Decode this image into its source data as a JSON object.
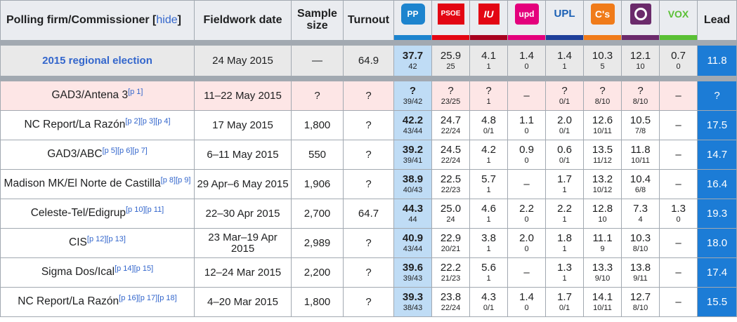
{
  "header": {
    "firm_label": "Polling firm/Commissioner",
    "hide_link_open": "[",
    "hide_link": "hide",
    "hide_link_close": "]",
    "fieldwork_label": "Fieldwork date",
    "sample_label_1": "Sample",
    "sample_label_2": "size",
    "turnout_label": "Turnout",
    "lead_label": "Lead",
    "parties": [
      {
        "name": "pp-logo",
        "text": "PP",
        "bg": "#1d84ce",
        "fg": "#ffffff",
        "bar": "#1d84ce"
      },
      {
        "name": "psoe-logo",
        "text": "PSOE",
        "bg": "#e30613",
        "fg": "#ffffff",
        "bar": "#e30613"
      },
      {
        "name": "iu-logo",
        "text": "IU",
        "bg": "#e30613",
        "fg": "#ffffff",
        "bar": "#a8001f"
      },
      {
        "name": "upd-logo",
        "text": "upd",
        "bg": "#e4007c",
        "fg": "#ffffff",
        "bar": "#e4007c"
      },
      {
        "name": "upl-logo",
        "text": "UPL",
        "bg": "#eaecf0",
        "fg": "#1a5fb4",
        "bar": "#1f3f9a"
      },
      {
        "name": "cs-logo",
        "text": "C's",
        "bg": "#f07b1a",
        "fg": "#ffffff",
        "bar": "#f07b1a"
      },
      {
        "name": "podemos-logo",
        "text": "",
        "bg": "#6b2a6b",
        "fg": "#ffffff",
        "bar": "#6b2a6b"
      },
      {
        "name": "vox-logo",
        "text": "VOX",
        "bg": "#eaecf0",
        "fg": "#5ac035",
        "bar": "#5ac035"
      }
    ]
  },
  "election": {
    "label": "2015 regional election",
    "date": "24 May 2015",
    "sample": "—",
    "turnout": "64.9",
    "parties": [
      {
        "v": "37.7",
        "s": "42"
      },
      {
        "v": "25.9",
        "s": "25"
      },
      {
        "v": "4.1",
        "s": "1"
      },
      {
        "v": "1.4",
        "s": "0"
      },
      {
        "v": "1.4",
        "s": "1"
      },
      {
        "v": "10.3",
        "s": "5"
      },
      {
        "v": "12.1",
        "s": "10"
      },
      {
        "v": "0.7",
        "s": "0"
      }
    ],
    "lead": "11.8"
  },
  "polls": [
    {
      "firm": "GAD3/Antena 3",
      "refs": [
        "[p 1]"
      ],
      "date": "11–22 May 2015",
      "sample": "?",
      "turnout": "?",
      "parties": [
        {
          "v": "?",
          "s": "39/42"
        },
        {
          "v": "?",
          "s": "23/25"
        },
        {
          "v": "?",
          "s": "1"
        },
        {
          "v": "–",
          "s": ""
        },
        {
          "v": "?",
          "s": "0/1"
        },
        {
          "v": "?",
          "s": "8/10"
        },
        {
          "v": "?",
          "s": "8/10"
        },
        {
          "v": "–",
          "s": ""
        }
      ],
      "lead": "?",
      "highlight": true
    },
    {
      "firm": "NC Report/La Razón",
      "refs": [
        "[p 2]",
        "[p 3]",
        "[p 4]"
      ],
      "date": "17 May 2015",
      "sample": "1,800",
      "turnout": "?",
      "parties": [
        {
          "v": "42.2",
          "s": "43/44"
        },
        {
          "v": "24.7",
          "s": "22/24"
        },
        {
          "v": "4.8",
          "s": "0/1"
        },
        {
          "v": "1.1",
          "s": "0"
        },
        {
          "v": "2.0",
          "s": "0/1"
        },
        {
          "v": "12.6",
          "s": "10/11"
        },
        {
          "v": "10.5",
          "s": "7/8"
        },
        {
          "v": "–",
          "s": ""
        }
      ],
      "lead": "17.5"
    },
    {
      "firm": "GAD3/ABC",
      "refs": [
        "[p 5]",
        "[p 6]",
        "[p 7]"
      ],
      "date": "6–11 May 2015",
      "sample": "550",
      "turnout": "?",
      "parties": [
        {
          "v": "39.2",
          "s": "39/41"
        },
        {
          "v": "24.5",
          "s": "22/24"
        },
        {
          "v": "4.2",
          "s": "1"
        },
        {
          "v": "0.9",
          "s": "0"
        },
        {
          "v": "0.6",
          "s": "0/1"
        },
        {
          "v": "13.5",
          "s": "11/12"
        },
        {
          "v": "11.8",
          "s": "10/11"
        },
        {
          "v": "–",
          "s": ""
        }
      ],
      "lead": "14.7"
    },
    {
      "firm": "Madison MK/El Norte de Castilla",
      "refs": [
        "[p 8]",
        "[p 9]"
      ],
      "date": "29 Apr–6 May 2015",
      "sample": "1,906",
      "turnout": "?",
      "parties": [
        {
          "v": "38.9",
          "s": "40/43"
        },
        {
          "v": "22.5",
          "s": "22/23"
        },
        {
          "v": "5.7",
          "s": "1"
        },
        {
          "v": "–",
          "s": ""
        },
        {
          "v": "1.7",
          "s": "1"
        },
        {
          "v": "13.2",
          "s": "10/12"
        },
        {
          "v": "10.4",
          "s": "6/8"
        },
        {
          "v": "–",
          "s": ""
        }
      ],
      "lead": "16.4"
    },
    {
      "firm": "Celeste-Tel/Edigrup",
      "refs": [
        "[p 10]",
        "[p 11]"
      ],
      "date": "22–30 Apr 2015",
      "sample": "2,700",
      "turnout": "64.7",
      "parties": [
        {
          "v": "44.3",
          "s": "44"
        },
        {
          "v": "25.0",
          "s": "24"
        },
        {
          "v": "4.6",
          "s": "1"
        },
        {
          "v": "2.2",
          "s": "0"
        },
        {
          "v": "2.2",
          "s": "1"
        },
        {
          "v": "12.8",
          "s": "10"
        },
        {
          "v": "7.3",
          "s": "4"
        },
        {
          "v": "1.3",
          "s": "0"
        }
      ],
      "lead": "19.3"
    },
    {
      "firm": "CIS",
      "refs": [
        "[p 12]",
        "[p 13]"
      ],
      "date": "23 Mar–19 Apr 2015",
      "sample": "2,989",
      "turnout": "?",
      "parties": [
        {
          "v": "40.9",
          "s": "43/44"
        },
        {
          "v": "22.9",
          "s": "20/21"
        },
        {
          "v": "3.8",
          "s": "1"
        },
        {
          "v": "2.0",
          "s": "0"
        },
        {
          "v": "1.8",
          "s": "1"
        },
        {
          "v": "11.1",
          "s": "9"
        },
        {
          "v": "10.3",
          "s": "8/10"
        },
        {
          "v": "–",
          "s": ""
        }
      ],
      "lead": "18.0"
    },
    {
      "firm": "Sigma Dos/Ical",
      "refs": [
        "[p 14]",
        "[p 15]"
      ],
      "date": "12–24 Mar 2015",
      "sample": "2,200",
      "turnout": "?",
      "parties": [
        {
          "v": "39.6",
          "s": "39/43"
        },
        {
          "v": "22.2",
          "s": "21/23"
        },
        {
          "v": "5.6",
          "s": "1"
        },
        {
          "v": "–",
          "s": ""
        },
        {
          "v": "1.3",
          "s": "1"
        },
        {
          "v": "13.3",
          "s": "9/10"
        },
        {
          "v": "13.8",
          "s": "9/11"
        },
        {
          "v": "–",
          "s": ""
        }
      ],
      "lead": "17.4"
    },
    {
      "firm": "NC Report/La Razón",
      "refs": [
        "[p 16]",
        "[p 17]",
        "[p 18]"
      ],
      "date": "4–20 Mar 2015",
      "sample": "1,800",
      "turnout": "?",
      "parties": [
        {
          "v": "39.3",
          "s": "38/43"
        },
        {
          "v": "23.8",
          "s": "22/24"
        },
        {
          "v": "4.3",
          "s": "0/1"
        },
        {
          "v": "1.4",
          "s": "0"
        },
        {
          "v": "1.7",
          "s": "0/1"
        },
        {
          "v": "14.1",
          "s": "10/11"
        },
        {
          "v": "12.7",
          "s": "8/10"
        },
        {
          "v": "–",
          "s": ""
        }
      ],
      "lead": "15.5"
    }
  ]
}
